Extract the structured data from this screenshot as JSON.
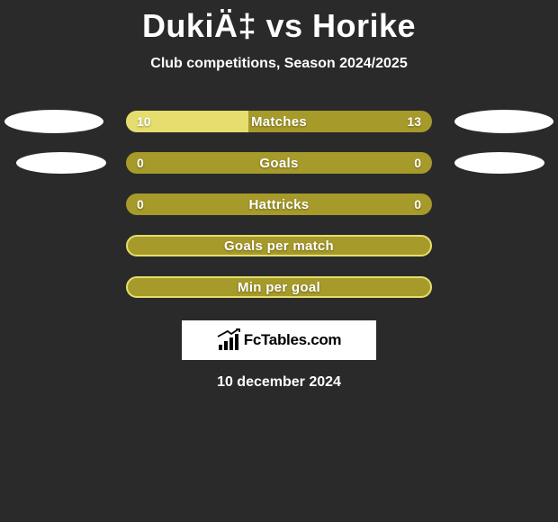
{
  "header": {
    "title": "DukiÄ‡ vs Horike",
    "subtitle": "Club competitions, Season 2024/2025"
  },
  "rows": [
    {
      "label": "Matches",
      "left_value": "10",
      "right_value": "13",
      "left_fill_pct": 40,
      "show_values": true,
      "show_ellipses": true,
      "ellipse_variant": "first",
      "style": "filled",
      "bar_bg": "#a69a2a",
      "fill_color": "#e5dd6e"
    },
    {
      "label": "Goals",
      "left_value": "0",
      "right_value": "0",
      "left_fill_pct": 0,
      "show_values": true,
      "show_ellipses": true,
      "ellipse_variant": "second",
      "style": "filled",
      "bar_bg": "#a69a2a",
      "fill_color": "#e5dd6e"
    },
    {
      "label": "Hattricks",
      "left_value": "0",
      "right_value": "0",
      "left_fill_pct": 0,
      "show_values": true,
      "show_ellipses": false,
      "style": "filled",
      "bar_bg": "#a69a2a",
      "fill_color": "#e5dd6e"
    },
    {
      "label": "Goals per match",
      "left_value": "",
      "right_value": "",
      "left_fill_pct": 0,
      "show_values": false,
      "show_ellipses": false,
      "style": "outline",
      "bar_bg": "#a69a2a",
      "fill_color": "#e5dd6e"
    },
    {
      "label": "Min per goal",
      "left_value": "",
      "right_value": "",
      "left_fill_pct": 0,
      "show_values": false,
      "show_ellipses": false,
      "style": "outline",
      "bar_bg": "#a69a2a",
      "fill_color": "#e5dd6e"
    }
  ],
  "logo": {
    "text": "FcTables.com"
  },
  "footer": {
    "date": "10 december 2024"
  },
  "colors": {
    "page_bg": "#2a2a2a",
    "text": "#ffffff",
    "bar_bg": "#a69a2a",
    "bar_fill": "#e5dd6e",
    "ellipse": "#ffffff",
    "logo_bg": "#ffffff"
  }
}
